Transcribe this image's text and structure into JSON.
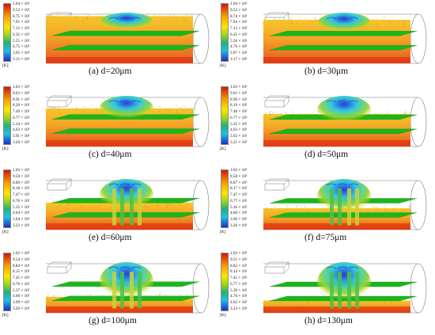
{
  "panels": [
    {
      "caption": "(a)  d=20μm",
      "ticks": [
        "1.04 × 10³",
        "9.53 × 10²",
        "8.75 × 10²",
        "7.95 × 10²",
        "7.15 × 10²",
        "6.35 × 10²",
        "5.55 × 10²",
        "4.75 × 10²",
        "3.95 × 10²",
        "3.15 × 10²"
      ],
      "unit": "[K]",
      "core_level": 0.05
    },
    {
      "caption": "(b)  d=30μm",
      "ticks": [
        "1.04 × 10³",
        "9.53 × 10²",
        "8.74 × 10²",
        "7.94 × 10²",
        "7.15 × 10²",
        "6.35 × 10²",
        "5.56 × 10²",
        "4.76 × 10²",
        "3.97 × 10²",
        "3.17 × 10²"
      ],
      "unit": "[K]",
      "core_level": 0.15
    },
    {
      "caption": "(c)  d=40μm",
      "ticks": [
        "1.03 × 10³",
        "9.63 × 10²",
        "8.91 × 10²",
        "8.20 × 10²",
        "7.49 × 10²",
        "6.77 × 10²",
        "5.34 × 10²",
        "4.63 × 10²",
        "3.91 × 10²",
        "3.20 × 10²"
      ],
      "unit": "[K]",
      "core_level": 0.3
    },
    {
      "caption": "(d)  d=50μm",
      "ticks": [
        "1.03 × 10³",
        "9.61 × 10²",
        "8.90 × 10²",
        "8.19 × 10²",
        "7.48 × 10²",
        "6.77 × 10²",
        "5.35 × 10²",
        "4.63 × 10²",
        "3.92 × 10²",
        "3.21 × 10²"
      ],
      "unit": "[K]",
      "core_level": 0.45
    },
    {
      "caption": "(e)  d=60μm",
      "ticks": [
        "1.03 × 10³",
        "9.59 × 10²",
        "8.89 × 10²",
        "8.18 × 10²",
        "7.47 × 10²",
        "6.76 × 10²",
        "5.35 × 10²",
        "4.64 × 10²",
        "3.94 × 10²",
        "3.23 × 10²"
      ],
      "unit": "[K]",
      "core_level": 0.6
    },
    {
      "caption": "(f)  d=75μm",
      "ticks": [
        "1.03 × 10³",
        "9.58 × 10²",
        "8.87 × 10²",
        "8.17 × 10²",
        "7.47 × 10²",
        "6.77 × 10²",
        "5.36 × 10²",
        "4.66 × 10²",
        "3.96 × 10²",
        "3.26 × 10²"
      ],
      "unit": "[K]",
      "core_level": 0.75
    },
    {
      "caption": "(g)  d=100μm",
      "ticks": [
        "1.02 × 10³",
        "9.54 × 10²",
        "8.84 × 10²",
        "8.15 × 10²",
        "7.45 × 10²",
        "6.76 × 10²",
        "5.37 × 10²",
        "4.68 × 10²",
        "3.99 × 10²",
        "3.29 × 10²"
      ],
      "unit": "[K]",
      "core_level": 0.9
    },
    {
      "caption": "(h)  d=130μm",
      "ticks": [
        "1.03 × 10³",
        "9.51 × 10²",
        "8.82 × 10²",
        "8.14 × 10²",
        "7.45 × 10²",
        "6.77 × 10²",
        "5.39 × 10²",
        "4.70 × 10²",
        "4.02 × 10²",
        "3.33 × 10²"
      ],
      "unit": "[K]",
      "core_level": 1.0
    }
  ]
}
